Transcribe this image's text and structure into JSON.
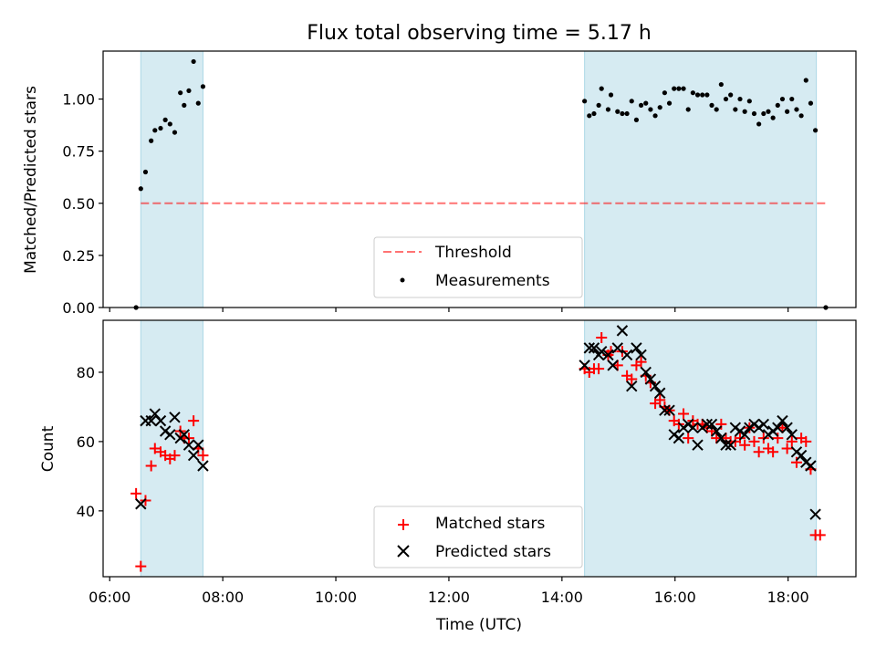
{
  "title": "Flux total observing time = 5.17 h",
  "colors": {
    "band": "#add8e6",
    "threshold": "#ff0000",
    "measurement": "#000000",
    "matched": "#ff0000",
    "predicted": "#000000"
  },
  "chart_data": [
    {
      "type": "scatter",
      "ylabel": "Matched/Predicted stars",
      "ylim": [
        0.0,
        1.23
      ],
      "yticks": [
        0.0,
        0.25,
        0.5,
        0.75,
        1.0
      ],
      "ytick_labels": [
        "0.00",
        "0.25",
        "0.50",
        "0.75",
        "1.00"
      ],
      "xlim": [
        "05:53",
        "19:12"
      ],
      "shaded_intervals": [
        [
          "06:33",
          "07:39"
        ],
        [
          "14:24",
          "18:30"
        ]
      ],
      "threshold": {
        "name": "Threshold",
        "value": 0.5,
        "x": [
          "06:33",
          "18:40"
        ]
      },
      "legend": {
        "position": "lower center",
        "entries": [
          "Threshold",
          "Measurements"
        ]
      },
      "series": [
        {
          "name": "Measurements",
          "marker": "dot",
          "points": [
            [
              "06:28",
              0.0
            ],
            [
              "06:33",
              0.57
            ],
            [
              "06:38",
              0.65
            ],
            [
              "06:44",
              0.8
            ],
            [
              "06:48",
              0.85
            ],
            [
              "06:54",
              0.86
            ],
            [
              "06:59",
              0.9
            ],
            [
              "07:04",
              0.88
            ],
            [
              "07:09",
              0.84
            ],
            [
              "07:15",
              1.03
            ],
            [
              "07:19",
              0.97
            ],
            [
              "07:24",
              1.04
            ],
            [
              "07:29",
              1.18
            ],
            [
              "07:34",
              0.98
            ],
            [
              "07:39",
              1.06
            ],
            [
              "14:24",
              0.99
            ],
            [
              "14:29",
              0.92
            ],
            [
              "14:34",
              0.93
            ],
            [
              "14:39",
              0.97
            ],
            [
              "14:42",
              1.05
            ],
            [
              "14:49",
              0.95
            ],
            [
              "14:52",
              1.02
            ],
            [
              "14:59",
              0.94
            ],
            [
              "15:04",
              0.93
            ],
            [
              "15:09",
              0.93
            ],
            [
              "15:14",
              0.99
            ],
            [
              "15:19",
              0.9
            ],
            [
              "15:24",
              0.97
            ],
            [
              "15:29",
              0.98
            ],
            [
              "15:34",
              0.95
            ],
            [
              "15:39",
              0.92
            ],
            [
              "15:44",
              0.96
            ],
            [
              "15:49",
              1.03
            ],
            [
              "15:54",
              0.98
            ],
            [
              "15:59",
              1.05
            ],
            [
              "16:04",
              1.05
            ],
            [
              "16:09",
              1.05
            ],
            [
              "16:14",
              0.95
            ],
            [
              "16:19",
              1.03
            ],
            [
              "16:24",
              1.02
            ],
            [
              "16:29",
              1.02
            ],
            [
              "16:34",
              1.02
            ],
            [
              "16:39",
              0.97
            ],
            [
              "16:44",
              0.95
            ],
            [
              "16:49",
              1.07
            ],
            [
              "16:54",
              1.0
            ],
            [
              "16:59",
              1.02
            ],
            [
              "17:04",
              0.95
            ],
            [
              "17:09",
              1.0
            ],
            [
              "17:14",
              0.94
            ],
            [
              "17:19",
              0.99
            ],
            [
              "17:24",
              0.93
            ],
            [
              "17:29",
              0.88
            ],
            [
              "17:34",
              0.93
            ],
            [
              "17:39",
              0.94
            ],
            [
              "17:44",
              0.91
            ],
            [
              "17:49",
              0.97
            ],
            [
              "17:54",
              1.0
            ],
            [
              "17:59",
              0.94
            ],
            [
              "18:04",
              1.0
            ],
            [
              "18:09",
              0.95
            ],
            [
              "18:14",
              0.92
            ],
            [
              "18:19",
              1.09
            ],
            [
              "18:24",
              0.98
            ],
            [
              "18:29",
              0.85
            ],
            [
              "18:40",
              0.0
            ]
          ]
        }
      ]
    },
    {
      "type": "scatter",
      "ylabel": "Count",
      "xlabel": "Time (UTC)",
      "ylim": [
        21,
        95
      ],
      "yticks": [
        40,
        60,
        80
      ],
      "ytick_labels": [
        "40",
        "60",
        "80"
      ],
      "xlim": [
        "05:53",
        "19:12"
      ],
      "xticks": [
        "06:00",
        "08:00",
        "10:00",
        "12:00",
        "14:00",
        "16:00",
        "18:00"
      ],
      "xtick_labels": [
        "06:00",
        "08:00",
        "10:00",
        "12:00",
        "14:00",
        "16:00",
        "18:00"
      ],
      "shaded_intervals": [
        [
          "06:33",
          "07:39"
        ],
        [
          "14:24",
          "18:30"
        ]
      ],
      "legend": {
        "position": "lower center",
        "entries": [
          "Matched stars",
          "Predicted stars"
        ]
      },
      "series": [
        {
          "name": "Matched stars",
          "marker": "plus",
          "points": [
            [
              "06:28",
              45
            ],
            [
              "06:33",
              24
            ],
            [
              "06:38",
              43
            ],
            [
              "06:44",
              53
            ],
            [
              "06:48",
              58
            ],
            [
              "06:54",
              57
            ],
            [
              "06:59",
              56
            ],
            [
              "07:04",
              55
            ],
            [
              "07:09",
              56
            ],
            [
              "07:15",
              63
            ],
            [
              "07:19",
              61
            ],
            [
              "07:24",
              61
            ],
            [
              "07:29",
              66
            ],
            [
              "07:34",
              58
            ],
            [
              "07:39",
              56
            ],
            [
              "14:24",
              81
            ],
            [
              "14:29",
              80
            ],
            [
              "14:34",
              81
            ],
            [
              "14:39",
              81
            ],
            [
              "14:42",
              90
            ],
            [
              "14:49",
              85
            ],
            [
              "14:52",
              86
            ],
            [
              "14:59",
              82
            ],
            [
              "15:04",
              86
            ],
            [
              "15:09",
              79
            ],
            [
              "15:14",
              78
            ],
            [
              "15:19",
              82
            ],
            [
              "15:24",
              83
            ],
            [
              "15:29",
              79
            ],
            [
              "15:34",
              77
            ],
            [
              "15:39",
              71
            ],
            [
              "15:44",
              72
            ],
            [
              "15:49",
              70
            ],
            [
              "15:54",
              69
            ],
            [
              "15:59",
              66
            ],
            [
              "16:04",
              65
            ],
            [
              "16:09",
              68
            ],
            [
              "16:14",
              61
            ],
            [
              "16:19",
              66
            ],
            [
              "16:24",
              65
            ],
            [
              "16:29",
              65
            ],
            [
              "16:34",
              64
            ],
            [
              "16:39",
              63
            ],
            [
              "16:44",
              61
            ],
            [
              "16:49",
              65
            ],
            [
              "16:54",
              61
            ],
            [
              "16:59",
              60
            ],
            [
              "17:04",
              60
            ],
            [
              "17:09",
              61
            ],
            [
              "17:14",
              59
            ],
            [
              "17:19",
              64
            ],
            [
              "17:24",
              60
            ],
            [
              "17:29",
              57
            ],
            [
              "17:34",
              61
            ],
            [
              "17:39",
              58
            ],
            [
              "17:44",
              57
            ],
            [
              "17:49",
              61
            ],
            [
              "17:54",
              64
            ],
            [
              "17:59",
              58
            ],
            [
              "18:04",
              60
            ],
            [
              "18:09",
              54
            ],
            [
              "18:14",
              61
            ],
            [
              "18:19",
              60
            ],
            [
              "18:24",
              52
            ],
            [
              "18:29",
              33
            ],
            [
              "18:34",
              33
            ]
          ]
        },
        {
          "name": "Predicted stars",
          "marker": "x",
          "points": [
            [
              "06:33",
              42
            ],
            [
              "06:38",
              66
            ],
            [
              "06:44",
              66
            ],
            [
              "06:48",
              68
            ],
            [
              "06:54",
              66
            ],
            [
              "06:59",
              63
            ],
            [
              "07:04",
              62
            ],
            [
              "07:09",
              67
            ],
            [
              "07:15",
              61
            ],
            [
              "07:19",
              62
            ],
            [
              "07:24",
              59
            ],
            [
              "07:29",
              56
            ],
            [
              "07:34",
              59
            ],
            [
              "07:39",
              53
            ],
            [
              "14:24",
              82
            ],
            [
              "14:29",
              87
            ],
            [
              "14:34",
              87
            ],
            [
              "14:39",
              85
            ],
            [
              "14:42",
              86
            ],
            [
              "14:49",
              85
            ],
            [
              "14:54",
              82
            ],
            [
              "14:59",
              87
            ],
            [
              "15:04",
              92
            ],
            [
              "15:09",
              85
            ],
            [
              "15:14",
              76
            ],
            [
              "15:19",
              87
            ],
            [
              "15:24",
              85
            ],
            [
              "15:29",
              80
            ],
            [
              "15:34",
              78
            ],
            [
              "15:39",
              76
            ],
            [
              "15:44",
              74
            ],
            [
              "15:49",
              69
            ],
            [
              "15:54",
              69
            ],
            [
              "15:59",
              62
            ],
            [
              "16:04",
              61
            ],
            [
              "16:09",
              64
            ],
            [
              "16:14",
              65
            ],
            [
              "16:19",
              64
            ],
            [
              "16:24",
              59
            ],
            [
              "16:29",
              64
            ],
            [
              "16:34",
              65
            ],
            [
              "16:39",
              65
            ],
            [
              "16:44",
              63
            ],
            [
              "16:49",
              61
            ],
            [
              "16:54",
              59
            ],
            [
              "16:59",
              59
            ],
            [
              "17:04",
              64
            ],
            [
              "17:09",
              63
            ],
            [
              "17:14",
              62
            ],
            [
              "17:19",
              64
            ],
            [
              "17:24",
              65
            ],
            [
              "17:29",
              64
            ],
            [
              "17:34",
              65
            ],
            [
              "17:39",
              62
            ],
            [
              "17:44",
              63
            ],
            [
              "17:49",
              64
            ],
            [
              "17:54",
              66
            ],
            [
              "17:59",
              64
            ],
            [
              "18:04",
              62
            ],
            [
              "18:09",
              57
            ],
            [
              "18:14",
              56
            ],
            [
              "18:19",
              54
            ],
            [
              "18:24",
              53
            ],
            [
              "18:29",
              39
            ]
          ]
        }
      ]
    }
  ]
}
